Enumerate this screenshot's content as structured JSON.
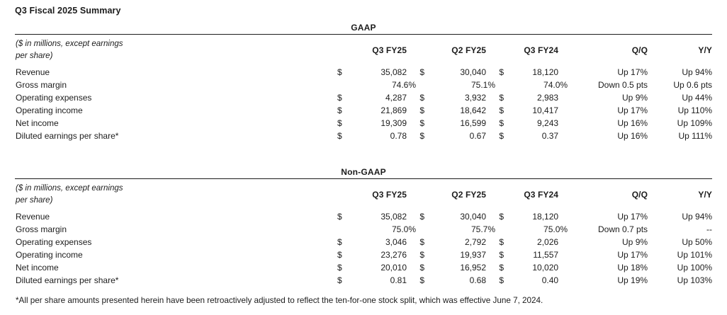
{
  "page": {
    "title": "Q3 Fiscal 2025 Summary",
    "footnote": "*All per share amounts presented herein have been retroactively adjusted to reflect the ten-for-one stock split, which was effective June 7, 2024.",
    "text_color": "#1c1c1c",
    "rule_color": "#1c1c1c",
    "background_color": "#ffffff"
  },
  "unit_note": [
    "($ in millions, except earnings",
    "per share)"
  ],
  "columns": [
    "Q3 FY25",
    "Q2 FY25",
    "Q3 FY24",
    "Q/Q",
    "Y/Y"
  ],
  "currency_symbol": "$",
  "tables": [
    {
      "name": "GAAP",
      "rows": [
        {
          "label": "Revenue",
          "usd": true,
          "values": [
            "35,082",
            "30,040",
            "18,120"
          ],
          "qq": "Up 17%",
          "yy": "Up 94%"
        },
        {
          "label": "Gross margin",
          "usd": false,
          "values": [
            "74.6%",
            "75.1%",
            "74.0%"
          ],
          "qq": "Down 0.5 pts",
          "yy": "Up 0.6 pts"
        },
        {
          "label": "Operating expenses",
          "usd": true,
          "values": [
            "4,287",
            "3,932",
            "2,983"
          ],
          "qq": "Up 9%",
          "yy": "Up 44%"
        },
        {
          "label": "Operating income",
          "usd": true,
          "values": [
            "21,869",
            "18,642",
            "10,417"
          ],
          "qq": "Up 17%",
          "yy": "Up 110%"
        },
        {
          "label": "Net income",
          "usd": true,
          "values": [
            "19,309",
            "16,599",
            "9,243"
          ],
          "qq": "Up 16%",
          "yy": "Up 109%"
        },
        {
          "label": "Diluted earnings per share*",
          "usd": true,
          "values": [
            "0.78",
            "0.67",
            "0.37"
          ],
          "qq": "Up 16%",
          "yy": "Up 111%"
        }
      ]
    },
    {
      "name": "Non-GAAP",
      "rows": [
        {
          "label": "Revenue",
          "usd": true,
          "values": [
            "35,082",
            "30,040",
            "18,120"
          ],
          "qq": "Up 17%",
          "yy": "Up 94%"
        },
        {
          "label": "Gross margin",
          "usd": false,
          "values": [
            "75.0%",
            "75.7%",
            "75.0%"
          ],
          "qq": "Down 0.7 pts",
          "yy": "--"
        },
        {
          "label": "Operating expenses",
          "usd": true,
          "values": [
            "3,046",
            "2,792",
            "2,026"
          ],
          "qq": "Up 9%",
          "yy": "Up 50%"
        },
        {
          "label": "Operating income",
          "usd": true,
          "values": [
            "23,276",
            "19,937",
            "11,557"
          ],
          "qq": "Up 17%",
          "yy": "Up 101%"
        },
        {
          "label": "Net income",
          "usd": true,
          "values": [
            "20,010",
            "16,952",
            "10,020"
          ],
          "qq": "Up 18%",
          "yy": "Up 100%"
        },
        {
          "label": "Diluted earnings per share*",
          "usd": true,
          "values": [
            "0.81",
            "0.68",
            "0.40"
          ],
          "qq": "Up 19%",
          "yy": "Up 103%"
        }
      ]
    }
  ]
}
